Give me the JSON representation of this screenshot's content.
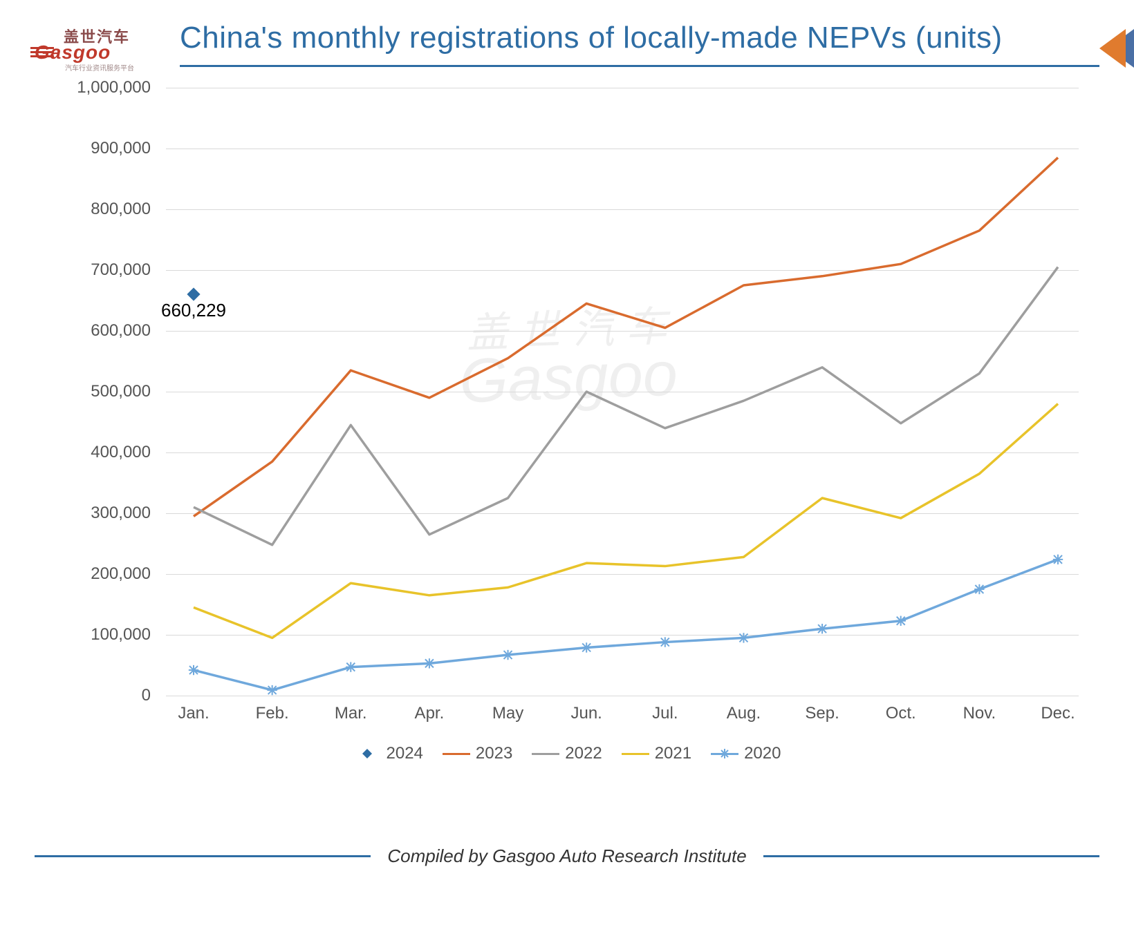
{
  "logo": {
    "cn_text": "盖世汽车",
    "en_text": "Gasgoo",
    "sub_text": "汽车行业资讯服务平台",
    "brand_color": "#c0392b"
  },
  "title": "China's monthly registrations of locally-made NEPVs (units)",
  "title_color": "#2e6da4",
  "corner_arrow_colors": {
    "front": "#e07b2e",
    "back": "#4a6fa5"
  },
  "chart": {
    "type": "line",
    "categories": [
      "Jan.",
      "Feb.",
      "Mar.",
      "Apr.",
      "May",
      "Jun.",
      "Jul.",
      "Aug.",
      "Sep.",
      "Oct.",
      "Nov.",
      "Dec."
    ],
    "ylim": [
      0,
      1000000
    ],
    "ytick_step": 100000,
    "ytick_format": "comma",
    "gridline_color": "#d9d9d9",
    "background_color": "#ffffff",
    "axis_label_fontsize": 24,
    "axis_label_color": "#555555",
    "line_width": 3.5,
    "marker_size": 6,
    "series": [
      {
        "name": "2024",
        "color": "#2e6da4",
        "marker": "diamond",
        "has_line": false,
        "values": [
          660229
        ]
      },
      {
        "name": "2023",
        "color": "#d96b2e",
        "marker": "none",
        "has_line": true,
        "values": [
          295000,
          385000,
          535000,
          490000,
          555000,
          645000,
          605000,
          675000,
          690000,
          710000,
          765000,
          885000
        ]
      },
      {
        "name": "2022",
        "color": "#9e9e9e",
        "marker": "none",
        "has_line": true,
        "values": [
          310000,
          248000,
          445000,
          265000,
          325000,
          500000,
          440000,
          485000,
          540000,
          448000,
          530000,
          705000
        ]
      },
      {
        "name": "2021",
        "color": "#e8c32a",
        "marker": "none",
        "has_line": true,
        "values": [
          145000,
          95000,
          185000,
          165000,
          178000,
          218000,
          213000,
          228000,
          325000,
          292000,
          365000,
          480000
        ]
      },
      {
        "name": "2020",
        "color": "#6fa8dc",
        "marker": "star",
        "has_line": true,
        "values": [
          42000,
          9000,
          47000,
          53000,
          67000,
          79000,
          88000,
          95000,
          110000,
          123000,
          175000,
          224000
        ]
      }
    ],
    "data_label": {
      "series": "2024",
      "index": 0,
      "text": "660,229"
    },
    "legend": {
      "position": "bottom",
      "fontsize": 24
    },
    "watermark": {
      "cn": "盖 世 汽 车",
      "en": "Gasgoo",
      "color": "rgba(120,120,120,0.12)"
    }
  },
  "footer": "Compiled by Gasgoo Auto Research Institute"
}
